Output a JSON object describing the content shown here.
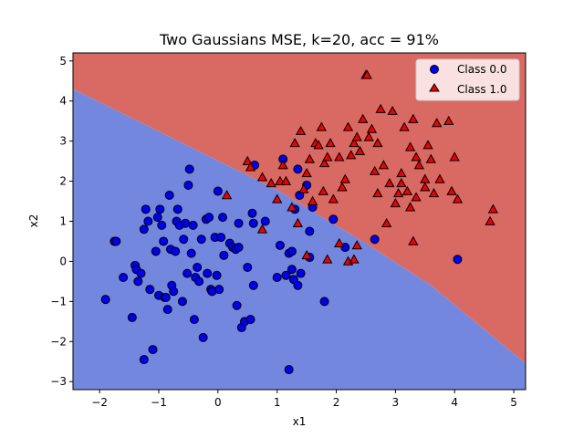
{
  "chart_data": {
    "type": "scatter",
    "title": "Two Gaussians MSE, k=20, acc = 91%",
    "xlabel": "x1",
    "ylabel": "x2",
    "xlim": [
      -2.45,
      5.2
    ],
    "ylim": [
      -3.2,
      5.2
    ],
    "xticks": [
      -2,
      -1,
      0,
      1,
      2,
      3,
      4,
      5
    ],
    "yticks": [
      -3,
      -2,
      -1,
      0,
      1,
      2,
      3,
      4,
      5
    ],
    "grid": false,
    "legend_position": "top-right",
    "decision_boundary": {
      "description_points": [
        [
          -2.45,
          4.3
        ],
        [
          1.0,
          1.78
        ],
        [
          2.5,
          0.45
        ],
        [
          3.6,
          -0.6
        ],
        [
          5.2,
          -2.55
        ]
      ],
      "region_above": "Class 1.0",
      "region_below": "Class 0.0"
    },
    "region_colors": {
      "Class 0.0": "#7387de",
      "Class 1.0": "#d96a63"
    },
    "series": [
      {
        "name": "Class 0.0",
        "marker": "circle",
        "color": "#0000ee",
        "points": [
          [
            -1.9,
            -0.95
          ],
          [
            -1.75,
            0.5
          ],
          [
            -1.72,
            0.5
          ],
          [
            -1.6,
            -0.4
          ],
          [
            -1.45,
            -1.4
          ],
          [
            -1.4,
            -0.1
          ],
          [
            -1.38,
            -0.2
          ],
          [
            -1.35,
            -0.5
          ],
          [
            -1.3,
            -0.3
          ],
          [
            -1.25,
            -2.45
          ],
          [
            -1.25,
            0.8
          ],
          [
            -1.22,
            1.3
          ],
          [
            -1.18,
            1.0
          ],
          [
            -1.15,
            -0.7
          ],
          [
            -1.1,
            -2.2
          ],
          [
            -1.05,
            0.25
          ],
          [
            -1.02,
            1.1
          ],
          [
            -1.0,
            -0.85
          ],
          [
            -0.98,
            1.3
          ],
          [
            -0.95,
            0.9
          ],
          [
            -0.92,
            0.5
          ],
          [
            -0.9,
            -0.9
          ],
          [
            -0.88,
            -0.9
          ],
          [
            -0.85,
            -1.2
          ],
          [
            -0.82,
            1.65
          ],
          [
            -0.8,
            0.3
          ],
          [
            -0.78,
            -0.6
          ],
          [
            -0.75,
            -0.75
          ],
          [
            -0.72,
            0.25
          ],
          [
            -0.7,
            1.0
          ],
          [
            -0.68,
            1.3
          ],
          [
            -0.65,
            0.9
          ],
          [
            -0.6,
            -1.0
          ],
          [
            -0.58,
            0.55
          ],
          [
            -0.55,
            0.95
          ],
          [
            -0.52,
            -0.3
          ],
          [
            -0.5,
            1.9
          ],
          [
            -0.48,
            2.3
          ],
          [
            -0.45,
            0.2
          ],
          [
            -0.42,
            0.9
          ],
          [
            -0.4,
            -1.45
          ],
          [
            -0.38,
            -0.4
          ],
          [
            -0.35,
            -0.15
          ],
          [
            -0.32,
            -0.5
          ],
          [
            -0.28,
            0.55
          ],
          [
            -0.25,
            -1.9
          ],
          [
            -0.2,
            1.05
          ],
          [
            -0.18,
            -0.3
          ],
          [
            -0.15,
            1.1
          ],
          [
            -0.12,
            -0.7
          ],
          [
            -0.1,
            -0.75
          ],
          [
            -0.05,
            0.6
          ],
          [
            -0.02,
            -0.35
          ],
          [
            0.0,
            1.75
          ],
          [
            0.02,
            -0.7
          ],
          [
            0.05,
            0.6
          ],
          [
            0.08,
            1.1
          ],
          [
            0.1,
            0.15
          ],
          [
            0.2,
            0.45
          ],
          [
            0.25,
            0.35
          ],
          [
            0.3,
            0.3
          ],
          [
            0.32,
            -1.1
          ],
          [
            0.35,
            0.35
          ],
          [
            0.35,
            0.95
          ],
          [
            0.4,
            -1.65
          ],
          [
            0.45,
            -1.5
          ],
          [
            0.5,
            -0.15
          ],
          [
            0.55,
            -1.45
          ],
          [
            0.58,
            1.2
          ],
          [
            0.6,
            -0.6
          ],
          [
            0.6,
            0.95
          ],
          [
            0.62,
            2.4
          ],
          [
            0.8,
            1.0
          ],
          [
            1.0,
            -0.4
          ],
          [
            1.05,
            0.4
          ],
          [
            1.1,
            2.55
          ],
          [
            1.15,
            -0.35
          ],
          [
            1.2,
            0.2
          ],
          [
            1.2,
            -2.7
          ],
          [
            1.25,
            0.25
          ],
          [
            1.25,
            -0.2
          ],
          [
            1.28,
            -0.45
          ],
          [
            1.3,
            1.3
          ],
          [
            1.35,
            -0.6
          ],
          [
            1.35,
            2.3
          ],
          [
            1.38,
            1.65
          ],
          [
            1.4,
            -0.3
          ],
          [
            1.5,
            1.9
          ],
          [
            1.55,
            0.1
          ],
          [
            1.55,
            0.75
          ],
          [
            1.6,
            1.35
          ],
          [
            1.8,
            -1.0
          ],
          [
            1.95,
            1.05
          ],
          [
            2.15,
            0.35
          ],
          [
            2.65,
            0.55
          ],
          [
            4.05,
            0.05
          ]
        ]
      },
      {
        "name": "Class 1.0",
        "marker": "triangle",
        "color": "#ee0000",
        "points": [
          [
            0.15,
            1.65
          ],
          [
            0.5,
            2.5
          ],
          [
            0.55,
            2.35
          ],
          [
            0.75,
            2.1
          ],
          [
            0.75,
            0.8
          ],
          [
            0.9,
            1.95
          ],
          [
            1.05,
            2.0
          ],
          [
            1.1,
            2.4
          ],
          [
            1.15,
            2.0
          ],
          [
            1.25,
            1.35
          ],
          [
            1.3,
            2.95
          ],
          [
            1.35,
            0.95
          ],
          [
            1.4,
            3.25
          ],
          [
            1.45,
            1.8
          ],
          [
            1.5,
            2.2
          ],
          [
            1.55,
            2.55
          ],
          [
            1.6,
            1.5
          ],
          [
            1.65,
            2.95
          ],
          [
            1.7,
            2.9
          ],
          [
            1.75,
            3.35
          ],
          [
            1.78,
            1.75
          ],
          [
            1.8,
            2.45
          ],
          [
            1.85,
            2.6
          ],
          [
            1.9,
            2.95
          ],
          [
            1.95,
            1.55
          ],
          [
            2.05,
            2.6
          ],
          [
            2.1,
            1.85
          ],
          [
            2.15,
            2.05
          ],
          [
            2.2,
            3.35
          ],
          [
            2.25,
            2.65
          ],
          [
            2.3,
            2.95
          ],
          [
            2.35,
            3.1
          ],
          [
            2.4,
            2.75
          ],
          [
            2.45,
            3.55
          ],
          [
            2.5,
            4.65
          ],
          [
            2.52,
            4.65
          ],
          [
            2.55,
            3.1
          ],
          [
            2.6,
            3.3
          ],
          [
            2.65,
            2.25
          ],
          [
            2.7,
            1.7
          ],
          [
            2.7,
            2.95
          ],
          [
            2.75,
            3.8
          ],
          [
            2.8,
            2.4
          ],
          [
            2.85,
            0.95
          ],
          [
            2.9,
            1.95
          ],
          [
            2.95,
            3.75
          ],
          [
            3.0,
            1.45
          ],
          [
            3.05,
            1.7
          ],
          [
            3.1,
            2.2
          ],
          [
            3.1,
            1.95
          ],
          [
            3.15,
            3.35
          ],
          [
            3.2,
            1.75
          ],
          [
            3.25,
            1.35
          ],
          [
            3.25,
            2.85
          ],
          [
            3.3,
            3.55
          ],
          [
            3.3,
            0.5
          ],
          [
            3.35,
            1.6
          ],
          [
            3.35,
            2.6
          ],
          [
            3.4,
            2.4
          ],
          [
            3.5,
            2.05
          ],
          [
            3.5,
            1.85
          ],
          [
            3.55,
            2.9
          ],
          [
            3.6,
            2.55
          ],
          [
            3.65,
            1.7
          ],
          [
            3.7,
            3.45
          ],
          [
            3.75,
            2.05
          ],
          [
            3.9,
            3.5
          ],
          [
            3.95,
            1.75
          ],
          [
            4.0,
            2.6
          ],
          [
            4.05,
            1.55
          ],
          [
            4.6,
            1.0
          ],
          [
            4.65,
            1.3
          ],
          [
            1.85,
            0.05
          ],
          [
            2.05,
            0.45
          ],
          [
            2.2,
            0.0
          ],
          [
            2.3,
            0.05
          ],
          [
            2.35,
            0.4
          ],
          [
            1.5,
            0.15
          ],
          [
            1.0,
            1.55
          ]
        ]
      }
    ]
  }
}
